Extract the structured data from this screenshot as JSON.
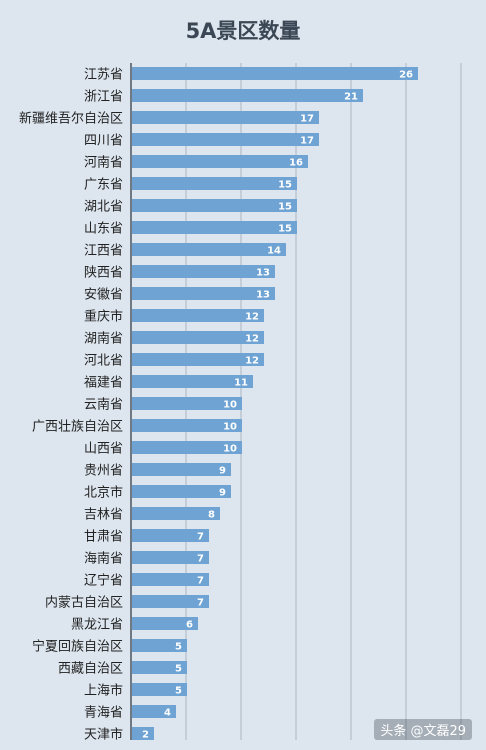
{
  "chart_data": {
    "type": "bar",
    "orientation": "horizontal",
    "title": "5A景区数量",
    "categories": [
      "江苏省",
      "浙江省",
      "新疆维吾尔自治区",
      "四川省",
      "河南省",
      "广东省",
      "湖北省",
      "山东省",
      "江西省",
      "陕西省",
      "安徽省",
      "重庆市",
      "湖南省",
      "河北省",
      "福建省",
      "云南省",
      "广西壮族自治区",
      "山西省",
      "贵州省",
      "北京市",
      "吉林省",
      "甘肃省",
      "海南省",
      "辽宁省",
      "内蒙古自治区",
      "黑龙江省",
      "宁夏回族自治区",
      "西藏自治区",
      "上海市",
      "青海省",
      "天津市"
    ],
    "values": [
      26,
      21,
      17,
      17,
      16,
      15,
      15,
      15,
      14,
      13,
      13,
      12,
      12,
      12,
      11,
      10,
      10,
      10,
      9,
      9,
      8,
      7,
      7,
      7,
      7,
      6,
      5,
      5,
      5,
      4,
      2
    ],
    "xlim": [
      0,
      30
    ],
    "grid": true,
    "colors": {
      "bar": "#6fa3d3",
      "background": "#dde6ef",
      "grid": "#aab5c2",
      "label": "#ffffff"
    }
  },
  "watermark": "头条 @文磊29"
}
